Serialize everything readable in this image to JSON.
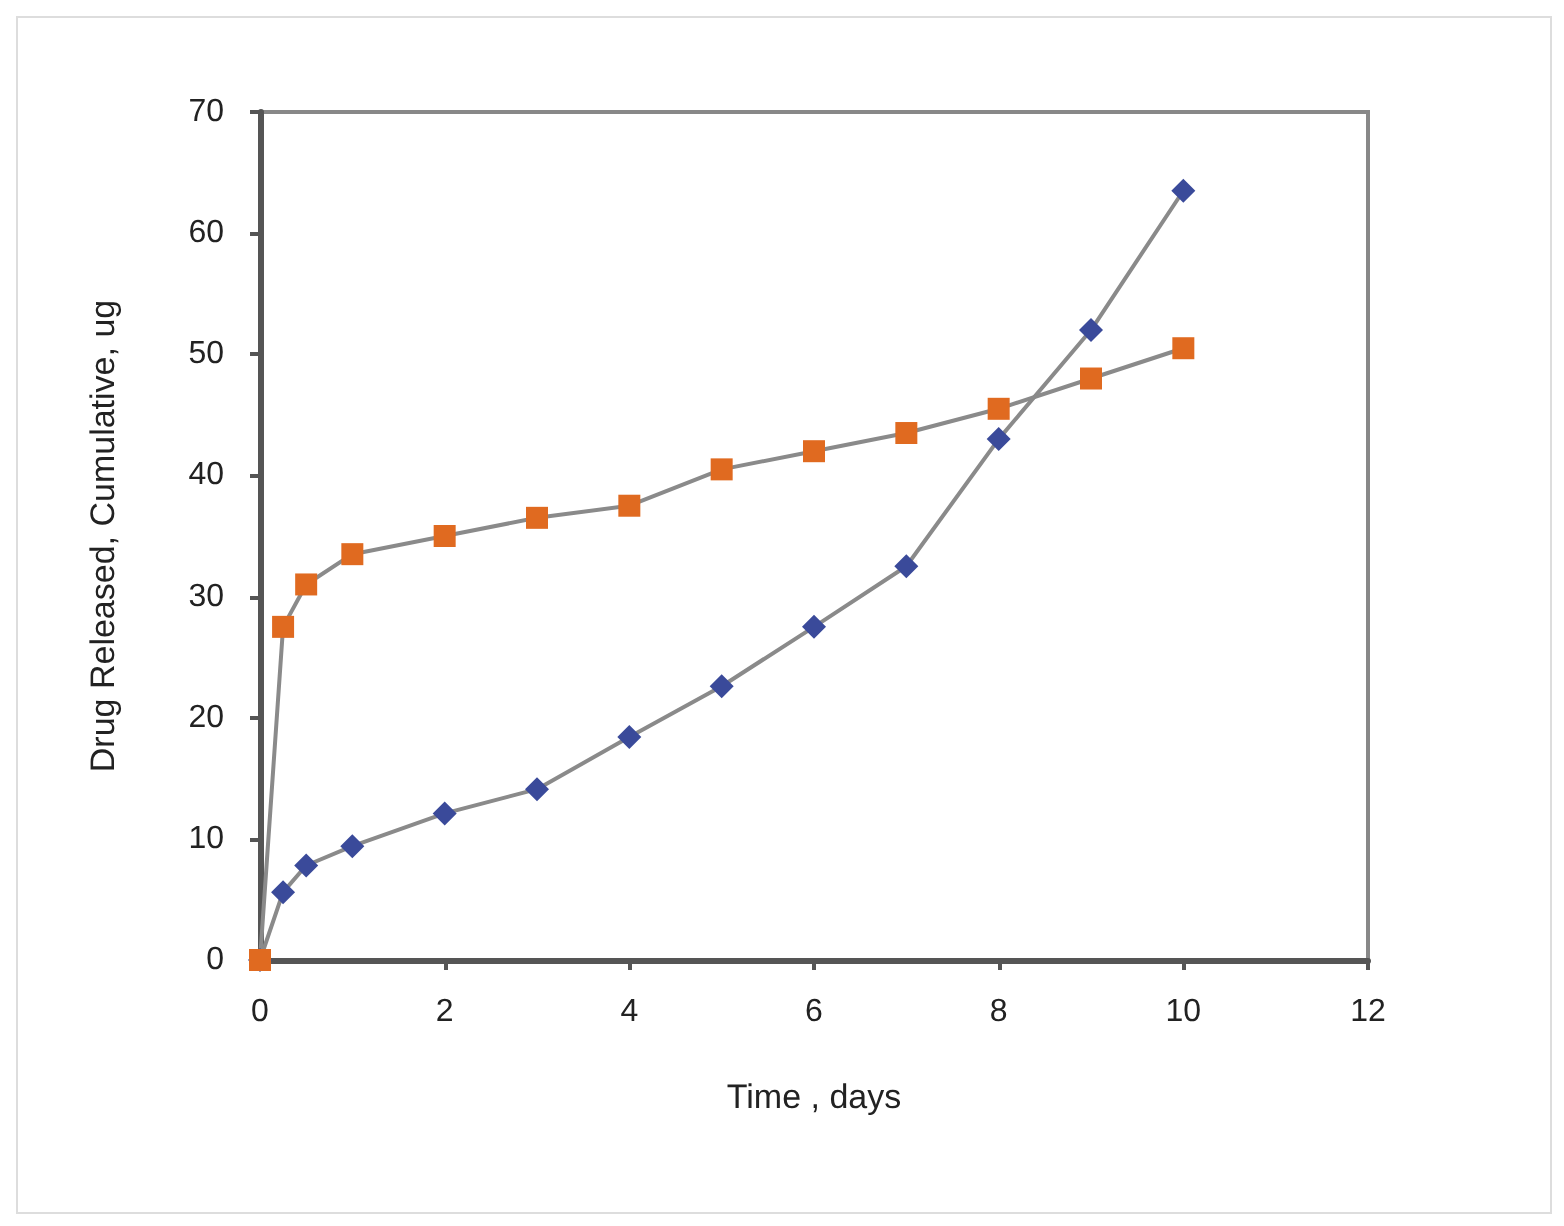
{
  "chart_data": {
    "type": "line",
    "xlabel": "Time , days",
    "ylabel": "Drug Released, Cumulative, ug",
    "xlim": [
      0,
      12
    ],
    "xticks": [
      0,
      2,
      4,
      6,
      8,
      10,
      12
    ],
    "ylim": [
      0,
      70
    ],
    "yticks": [
      0,
      10,
      20,
      30,
      40,
      50,
      60,
      70
    ],
    "grid": false,
    "series": [
      {
        "color": "#3a4a9a",
        "marker": "diamond",
        "x": [
          0,
          0.25,
          0.5,
          1,
          2,
          3,
          4,
          5,
          6,
          7,
          8,
          9,
          10
        ],
        "values": [
          0,
          5.6,
          7.8,
          9.4,
          12.1,
          14.1,
          18.4,
          22.6,
          27.5,
          32.5,
          43,
          52,
          63.5
        ]
      },
      {
        "color": "#e06a20",
        "marker": "square",
        "x": [
          0,
          0.25,
          0.5,
          1,
          2,
          3,
          4,
          5,
          6,
          7,
          8,
          9,
          10
        ],
        "values": [
          0,
          27.5,
          31,
          33.5,
          35,
          36.5,
          37.5,
          40.5,
          42,
          43.5,
          45.5,
          48,
          50.5
        ]
      }
    ]
  }
}
